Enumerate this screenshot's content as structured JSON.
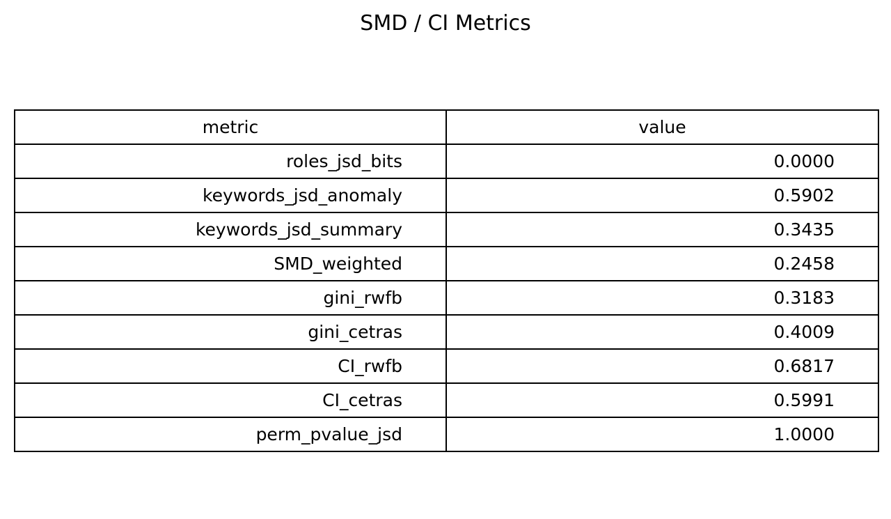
{
  "chart_data": {
    "type": "table",
    "title": "SMD / CI Metrics",
    "columns": [
      "metric",
      "value"
    ],
    "rows": [
      [
        "roles_jsd_bits",
        "0.0000"
      ],
      [
        "keywords_jsd_anomaly",
        "0.5902"
      ],
      [
        "keywords_jsd_summary",
        "0.3435"
      ],
      [
        "SMD_weighted",
        "0.2458"
      ],
      [
        "gini_rwfb",
        "0.3183"
      ],
      [
        "gini_cetras",
        "0.4009"
      ],
      [
        "CI_rwfb",
        "0.6817"
      ],
      [
        "CI_cetras",
        "0.5991"
      ],
      [
        "perm_pvalue_jsd",
        "1.0000"
      ]
    ]
  }
}
